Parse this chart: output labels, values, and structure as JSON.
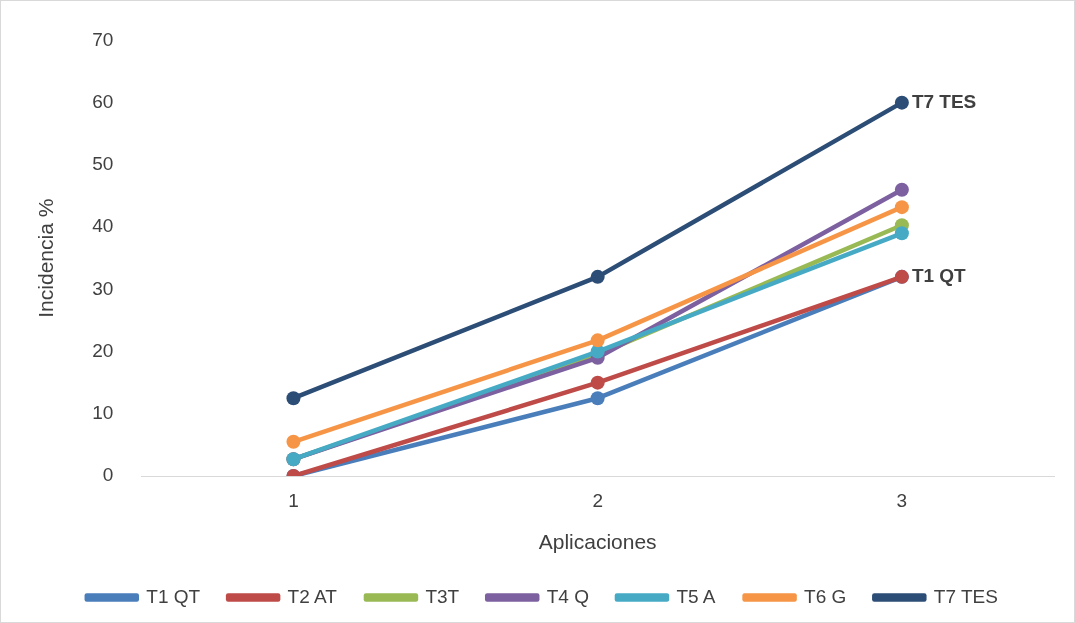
{
  "chart_data": {
    "type": "line",
    "xlabel": "Aplicaciones",
    "ylabel": "Incidencia %",
    "categories": [
      "1",
      "2",
      "3"
    ],
    "ylim": [
      0,
      70
    ],
    "yticks": [
      0,
      10,
      20,
      30,
      40,
      50,
      60,
      70
    ],
    "grid": false,
    "legend": "bottom",
    "marker": "circle",
    "line_style": "solid",
    "series": [
      {
        "name": "T1 QT",
        "color": "#4a7ebb",
        "values": [
          0,
          12.5,
          32
        ]
      },
      {
        "name": "T2 AT",
        "color": "#be4b48",
        "values": [
          0,
          15,
          32
        ]
      },
      {
        "name": "T3T",
        "color": "#98b954",
        "values": [
          2.7,
          19.5,
          40.3
        ]
      },
      {
        "name": "T4 Q",
        "color": "#7d60a0",
        "values": [
          2.7,
          19,
          46
        ]
      },
      {
        "name": "T5 A",
        "color": "#46aac5",
        "values": [
          2.7,
          20,
          39
        ]
      },
      {
        "name": "T6 G",
        "color": "#f69546",
        "values": [
          5.5,
          21.8,
          43.2
        ]
      },
      {
        "name": "T7 TES",
        "color": "#2c4d75",
        "values": [
          12.5,
          32,
          60
        ]
      }
    ],
    "annotations": [
      {
        "text": "T7 TES",
        "x": "3",
        "y": 60
      },
      {
        "text": "T1 QT",
        "x": "3",
        "y": 32
      }
    ]
  }
}
